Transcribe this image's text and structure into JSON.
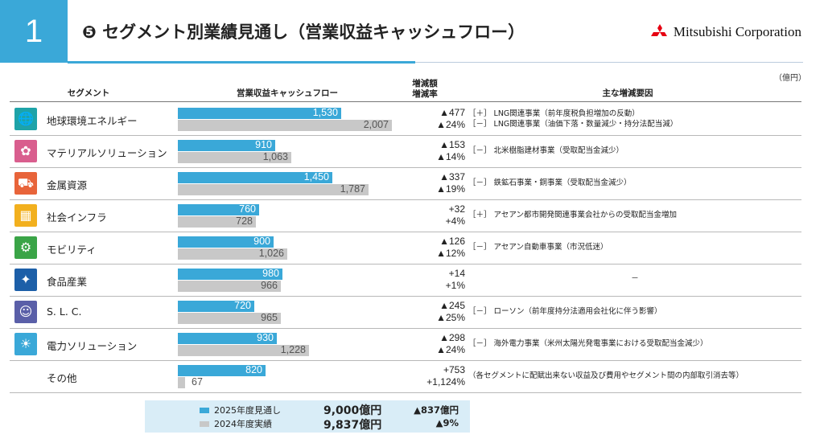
{
  "header": {
    "slide_number": "1",
    "title": "❺ セグメント別業績見通し（営業収益キャッシュフロー）",
    "logo_text": "Mitsubishi Corporation"
  },
  "table": {
    "unit": "（億円）",
    "columns": [
      "セグメント",
      "営業収益キャッシュフロー",
      "増減額\n増減率",
      "主な増減要因"
    ],
    "rows": [
      {
        "name": "地球環境エネルギー",
        "icon": "globe-icon",
        "icon_color": "#1ea3a8",
        "v2025": "1,530",
        "v2024": "2,007",
        "n2025": 1530,
        "n2024": 2007,
        "delta_amount": "▲477",
        "delta_rate": "▲24%",
        "factors": [
          "［＋］ LNG関連事業（前年度税負担増加の反動）",
          "［－］ LNG関連事業（油価下落・数量減少・持分法配当減）"
        ]
      },
      {
        "name": "マテリアルソリューション",
        "icon": "materials-icon",
        "icon_color": "#d95e8e",
        "v2025": "910",
        "v2024": "1,063",
        "n2025": 910,
        "n2024": 1063,
        "delta_amount": "▲153",
        "delta_rate": "▲14%",
        "factors": [
          "［－］ 北米樹脂建材事業（受取配当金減少）"
        ]
      },
      {
        "name": "金属資源",
        "icon": "truck-icon",
        "icon_color": "#e8643a",
        "v2025": "1,450",
        "v2024": "1,787",
        "n2025": 1450,
        "n2024": 1787,
        "delta_amount": "▲337",
        "delta_rate": "▲19%",
        "factors": [
          "［－］ 鉄鉱石事業・銅事業（受取配当金減少）"
        ]
      },
      {
        "name": "社会インフラ",
        "icon": "infrastructure-icon",
        "icon_color": "#f2b01e",
        "v2025": "760",
        "v2024": "728",
        "n2025": 760,
        "n2024": 728,
        "delta_amount": "+32",
        "delta_rate": "+4%",
        "factors": [
          "［＋］ アセアン都市開発関連事業会社からの受取配当金増加"
        ]
      },
      {
        "name": "モビリティ",
        "icon": "car-icon",
        "icon_color": "#3aa447",
        "v2025": "900",
        "v2024": "1,026",
        "n2025": 900,
        "n2024": 1026,
        "delta_amount": "▲126",
        "delta_rate": "▲12%",
        "factors": [
          "［－］ アセアン自動車事業（市況低迷）"
        ]
      },
      {
        "name": "食品産業",
        "icon": "food-icon",
        "icon_color": "#1c5fa8",
        "v2025": "980",
        "v2024": "966",
        "n2025": 980,
        "n2024": 966,
        "delta_amount": "+14",
        "delta_rate": "+1%",
        "factors": [
          "－"
        ]
      },
      {
        "name": "S. L. C.",
        "icon": "people-icon",
        "icon_color": "#5a5fa8",
        "v2025": "720",
        "v2024": "965",
        "n2025": 720,
        "n2024": 965,
        "delta_amount": "▲245",
        "delta_rate": "▲25%",
        "factors": [
          "［－］ ローソン（前年度持分法適用会社化に伴う影響）"
        ]
      },
      {
        "name": "電力ソリューション",
        "icon": "solar-icon",
        "icon_color": "#3aa8d8",
        "v2025": "930",
        "v2024": "1,228",
        "n2025": 930,
        "n2024": 1228,
        "delta_amount": "▲298",
        "delta_rate": "▲24%",
        "factors": [
          "［－］ 海外電力事業（米州太陽光発電事業における受取配当金減少）"
        ]
      },
      {
        "name": "その他",
        "icon": "",
        "icon_color": "",
        "v2025": "820",
        "v2024": "67",
        "n2025": 820,
        "n2024": 67,
        "delta_amount": "+753",
        "delta_rate": "+1,124%",
        "factors": [
          "（各セグメントに配賦出来ない収益及び費用やセグメント間の内部取引消去等）"
        ]
      }
    ]
  },
  "summary": {
    "legend_2025": "2025年度見通し",
    "legend_2024": "2024年度実績",
    "total_2025": "9,000億円",
    "total_2024": "9,837億円",
    "delta_amount": "▲837億円",
    "delta_rate": "▲9%",
    "color_2025": "#3aa8d8",
    "color_2024": "#c8c8c8"
  }
}
